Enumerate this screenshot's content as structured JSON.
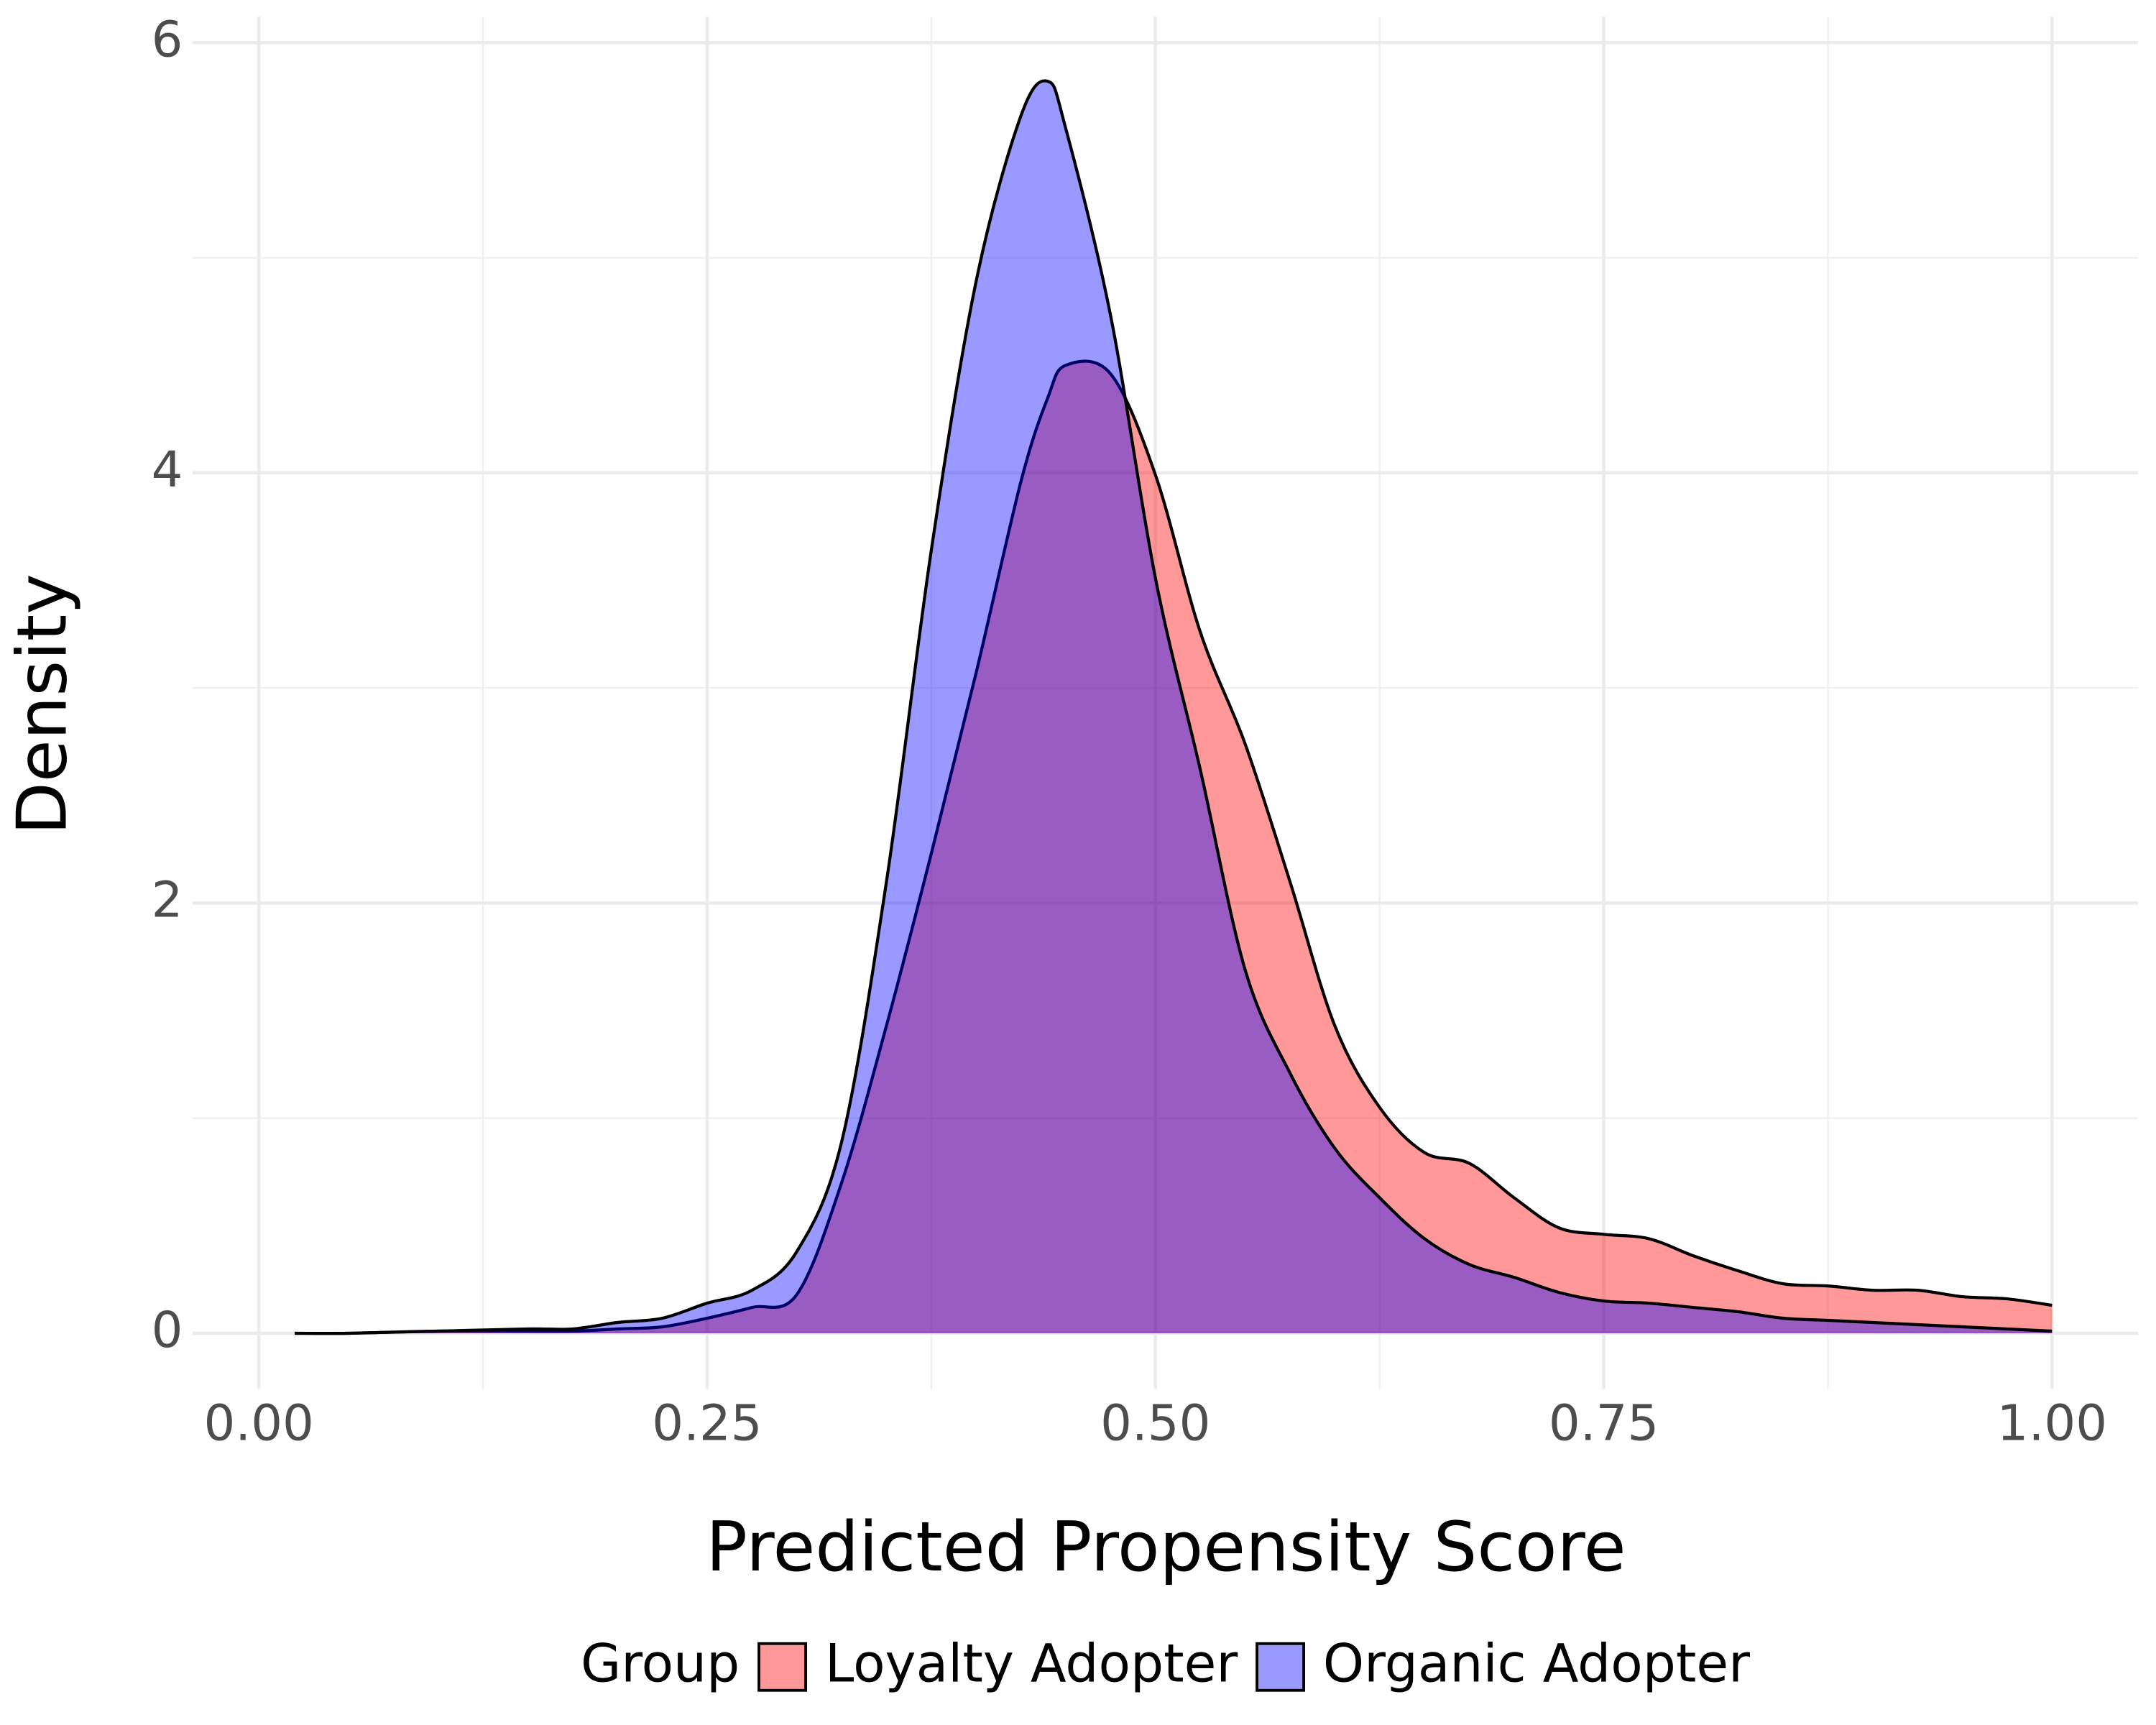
{
  "chart_data": {
    "type": "area",
    "xlabel": "Predicted Propensity Score",
    "ylabel": "Density",
    "legend_title": "Group",
    "legend_position": "bottom",
    "grid": true,
    "fill_opacity": 0.4,
    "x": [
      0.02,
      0.05,
      0.1,
      0.15,
      0.175,
      0.2,
      0.225,
      0.25,
      0.275,
      0.3,
      0.325,
      0.35,
      0.375,
      0.4,
      0.425,
      0.44,
      0.45,
      0.475,
      0.5,
      0.525,
      0.55,
      0.575,
      0.6,
      0.625,
      0.65,
      0.675,
      0.7,
      0.725,
      0.75,
      0.775,
      0.8,
      0.825,
      0.85,
      0.875,
      0.9,
      0.925,
      0.95,
      0.975,
      1.0
    ],
    "series": [
      {
        "name": "Loyalty Adopter",
        "color": "#ff0000",
        "values": [
          0,
          0,
          0.01,
          0.01,
          0.01,
          0.02,
          0.03,
          0.07,
          0.12,
          0.18,
          0.7,
          1.43,
          2.23,
          3.07,
          3.96,
          4.35,
          4.5,
          4.46,
          3.99,
          3.26,
          2.74,
          2.1,
          1.43,
          1.05,
          0.84,
          0.79,
          0.63,
          0.49,
          0.46,
          0.44,
          0.36,
          0.29,
          0.23,
          0.22,
          0.2,
          0.2,
          0.17,
          0.16,
          0.13
        ]
      },
      {
        "name": "Organic Adopter",
        "color": "#0000ff",
        "values": [
          0,
          0,
          0.01,
          0.02,
          0.02,
          0.05,
          0.07,
          0.14,
          0.2,
          0.38,
          0.89,
          2.1,
          3.64,
          4.89,
          5.66,
          5.82,
          5.6,
          4.73,
          3.51,
          2.62,
          1.69,
          1.21,
          0.86,
          0.63,
          0.44,
          0.32,
          0.26,
          0.19,
          0.15,
          0.14,
          0.12,
          0.1,
          0.07,
          0.06,
          0.05,
          0.04,
          0.03,
          0.02,
          0.01
        ]
      }
    ],
    "xlim": [
      -0.037,
      1.048
    ],
    "ylim": [
      -0.26,
      6.12
    ],
    "xticks": [
      {
        "value": 0,
        "label": "0.00"
      },
      0.25,
      {
        "value": 0.5,
        "label": "0.50"
      },
      0.75,
      {
        "value": 1,
        "label": "1.00"
      }
    ],
    "yticks": [
      0,
      2,
      4,
      6
    ],
    "xminor_ticks": [
      0.125,
      0.375,
      0.625,
      0.875
    ],
    "yminor_ticks": [
      1,
      3,
      5
    ]
  }
}
